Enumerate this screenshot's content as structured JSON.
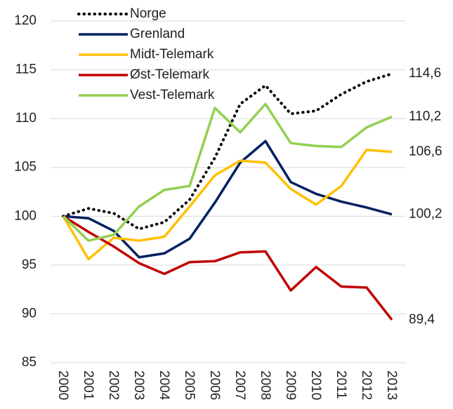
{
  "chart_data": {
    "type": "line",
    "categories": [
      "2000",
      "2001",
      "2002",
      "2003",
      "2004",
      "2005",
      "2006",
      "2007",
      "2008",
      "2009",
      "2010",
      "2011",
      "2012",
      "2013"
    ],
    "series": [
      {
        "name": "Norge",
        "color": "#000000",
        "dotted": true,
        "values": [
          100,
          100.8,
          100.3,
          98.7,
          99.4,
          101.7,
          106,
          111.5,
          113.4,
          110.5,
          110.8,
          112.5,
          113.8,
          114.6
        ],
        "value_labels": [
          null,
          null,
          null,
          null,
          null,
          null,
          null,
          null,
          null,
          null,
          null,
          null,
          null,
          "114,6"
        ]
      },
      {
        "name": "Grenland",
        "color": "#002060",
        "values": [
          100,
          99.8,
          98.5,
          95.8,
          96.2,
          97.7,
          101.4,
          105.5,
          107.7,
          103.5,
          102.3,
          101.5,
          100.9,
          100.2
        ],
        "value_labels": [
          null,
          null,
          null,
          null,
          null,
          null,
          null,
          null,
          null,
          null,
          null,
          null,
          null,
          "100,2"
        ]
      },
      {
        "name": "Midt-Telemark",
        "color": "#FFC000",
        "values": [
          100,
          95.6,
          97.8,
          97.5,
          97.9,
          101,
          104.2,
          105.7,
          105.5,
          102.8,
          101.2,
          103.1,
          106.8,
          106.6
        ],
        "value_labels": [
          null,
          null,
          null,
          null,
          null,
          null,
          null,
          null,
          null,
          null,
          null,
          null,
          null,
          "106,6"
        ]
      },
      {
        "name": "Øst-Telemark",
        "color": "#C00000",
        "values": [
          100,
          98.4,
          96.9,
          95.2,
          94.1,
          95.3,
          95.4,
          96.3,
          96.4,
          92.4,
          94.8,
          92.8,
          92.7,
          89.4
        ],
        "value_labels": [
          null,
          null,
          null,
          null,
          null,
          null,
          null,
          null,
          null,
          null,
          null,
          null,
          null,
          "89,4"
        ]
      },
      {
        "name": "Vest-Telemark",
        "color": "#92D050",
        "values": [
          100,
          97.5,
          98.1,
          101,
          102.7,
          103.1,
          111.1,
          108.6,
          111.5,
          107.5,
          107.2,
          107.1,
          109.1,
          110.2
        ],
        "value_labels": [
          null,
          null,
          null,
          null,
          null,
          null,
          null,
          null,
          null,
          null,
          null,
          null,
          null,
          "110,2"
        ]
      }
    ],
    "ylim": [
      85,
      120
    ],
    "yticks": [
      85,
      90,
      95,
      100,
      105,
      110,
      115,
      120
    ],
    "grid": true,
    "legend": "upper left"
  }
}
